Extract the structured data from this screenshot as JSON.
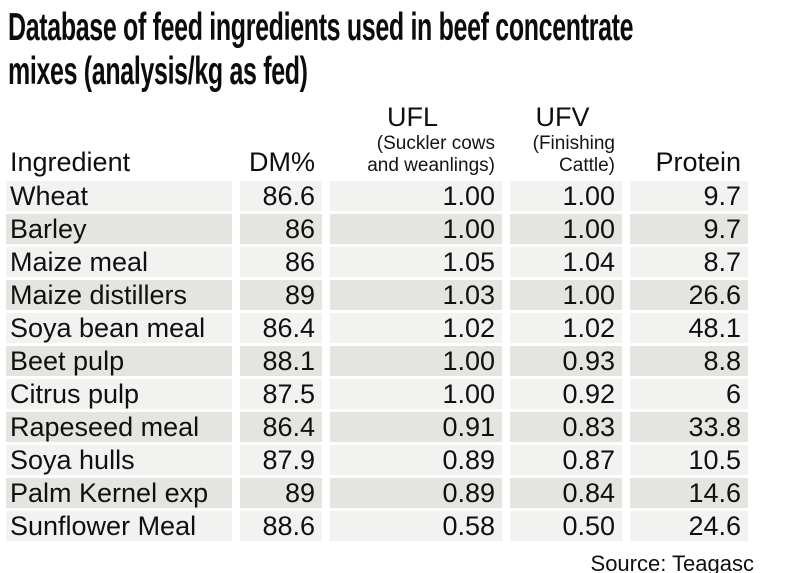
{
  "title": {
    "line1": "Database of feed ingredients used in beef concentrate",
    "line2": "mixes (analysis/kg as fed)"
  },
  "table": {
    "headers": {
      "ingredient": "Ingredient",
      "dm": "DM%",
      "ufl_label": "UFL",
      "ufl_sub1": "(Suckler cows",
      "ufl_sub2": "and weanlings)",
      "ufv_label": "UFV",
      "ufv_sub1": "(Finishing",
      "ufv_sub2": "Cattle)",
      "protein": "Protein"
    },
    "rows": [
      {
        "ingredient": "Wheat",
        "dm": "86.6",
        "ufl": "1.00",
        "ufv": "1.00",
        "protein": "9.7"
      },
      {
        "ingredient": "Barley",
        "dm": "86",
        "ufl": "1.00",
        "ufv": "1.00",
        "protein": "9.7"
      },
      {
        "ingredient": "Maize meal",
        "dm": "86",
        "ufl": "1.05",
        "ufv": "1.04",
        "protein": "8.7"
      },
      {
        "ingredient": "Maize distillers",
        "dm": "89",
        "ufl": "1.03",
        "ufv": "1.00",
        "protein": "26.6"
      },
      {
        "ingredient": "Soya bean meal",
        "dm": "86.4",
        "ufl": "1.02",
        "ufv": "1.02",
        "protein": "48.1"
      },
      {
        "ingredient": "Beet pulp",
        "dm": "88.1",
        "ufl": "1.00",
        "ufv": "0.93",
        "protein": "8.8"
      },
      {
        "ingredient": "Citrus pulp",
        "dm": "87.5",
        "ufl": "1.00",
        "ufv": "0.92",
        "protein": "6"
      },
      {
        "ingredient": "Rapeseed meal",
        "dm": "86.4",
        "ufl": "0.91",
        "ufv": "0.83",
        "protein": "33.8"
      },
      {
        "ingredient": "Soya hulls",
        "dm": "87.9",
        "ufl": "0.89",
        "ufv": "0.87",
        "protein": "10.5"
      },
      {
        "ingredient": "Palm Kernel exp",
        "dm": "89",
        "ufl": "0.89",
        "ufv": "0.84",
        "protein": "14.6"
      },
      {
        "ingredient": "Sunflower Meal",
        "dm": "88.6",
        "ufl": "0.58",
        "ufv": "0.50",
        "protein": "24.6"
      }
    ]
  },
  "source": "Source: Teagasc",
  "colors": {
    "row_light": "#f2f2f0",
    "row_dark": "#e4e4e0",
    "text": "#101010",
    "background": "#ffffff"
  },
  "chart_data": {
    "type": "table",
    "title": "Database of feed ingredients used in beef concentrate mixes (analysis/kg as fed)",
    "columns": [
      "Ingredient",
      "DM%",
      "UFL (Suckler cows and weanlings)",
      "UFV (Finishing Cattle)",
      "Protein"
    ],
    "rows": [
      [
        "Wheat",
        86.6,
        1.0,
        1.0,
        9.7
      ],
      [
        "Barley",
        86,
        1.0,
        1.0,
        9.7
      ],
      [
        "Maize meal",
        86,
        1.05,
        1.04,
        8.7
      ],
      [
        "Maize distillers",
        89,
        1.03,
        1.0,
        26.6
      ],
      [
        "Soya bean meal",
        86.4,
        1.02,
        1.02,
        48.1
      ],
      [
        "Beet pulp",
        88.1,
        1.0,
        0.93,
        8.8
      ],
      [
        "Citrus pulp",
        87.5,
        1.0,
        0.92,
        6
      ],
      [
        "Rapeseed meal",
        86.4,
        0.91,
        0.83,
        33.8
      ],
      [
        "Soya hulls",
        87.9,
        0.89,
        0.87,
        10.5
      ],
      [
        "Palm Kernel exp",
        89,
        0.89,
        0.84,
        14.6
      ],
      [
        "Sunflower Meal",
        88.6,
        0.58,
        0.5,
        24.6
      ]
    ],
    "source": "Source: Teagasc",
    "layout": {
      "striped_rows": true,
      "header_position": "top",
      "grid": "column-gaps-white"
    }
  }
}
